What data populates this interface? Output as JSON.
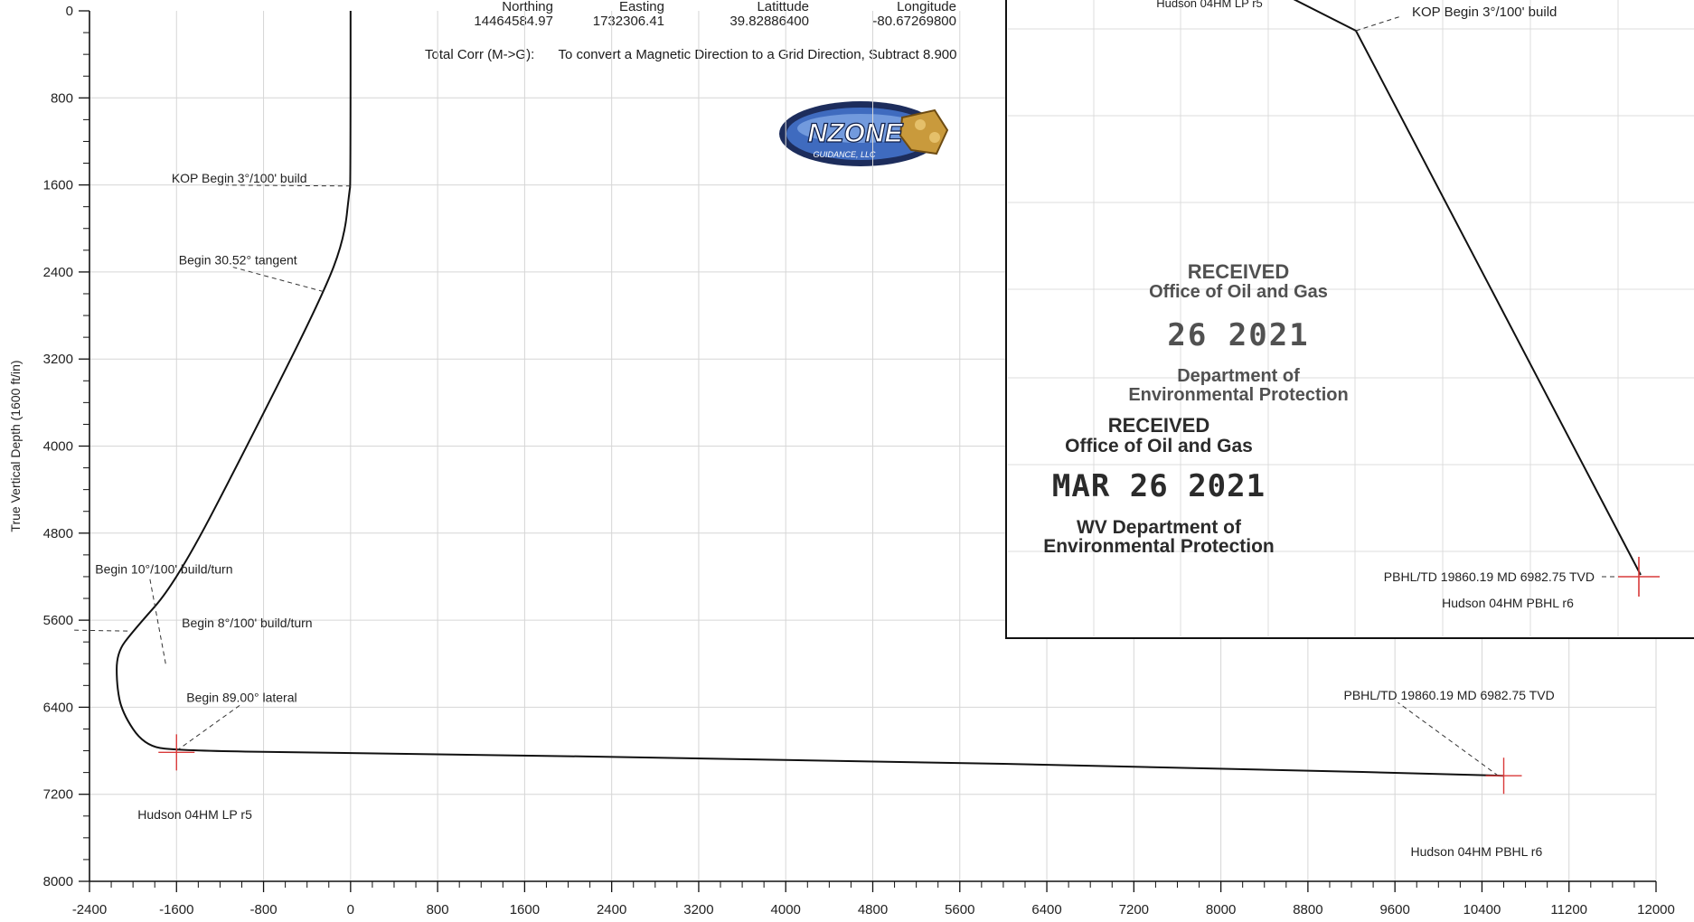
{
  "header": {
    "columns": [
      {
        "label": "Northing",
        "value": "14464584.97"
      },
      {
        "label": "Easting",
        "value": "1732306.41"
      },
      {
        "label": "Latittude",
        "value": "39.82886400"
      },
      {
        "label": "Longitude",
        "value": "-80.67269800"
      }
    ],
    "total_corr_label": "Total Corr (M->G):",
    "total_corr_text": "To convert a Magnetic Direction to a Grid Direction, Subtract 8.900"
  },
  "logo": {
    "text": "NZONE",
    "subtext": "GUIDANCE, LLC"
  },
  "chart_data": {
    "type": "line",
    "ylabel": "True Vertical Depth (1600 ft/in)",
    "x_ticks": [
      -2400,
      -1600,
      -800,
      0,
      800,
      1600,
      2400,
      3200,
      4000,
      4800,
      5600,
      6400,
      7200,
      8000,
      8800,
      9600,
      10400,
      11200,
      12000
    ],
    "y_ticks": [
      0,
      800,
      1600,
      2400,
      3200,
      4000,
      4800,
      5600,
      6400,
      7200,
      8000
    ],
    "xlim": [
      -2400,
      12000
    ],
    "ylim": [
      0,
      8000
    ],
    "y_inverted": true,
    "grid": true,
    "series": [
      {
        "x": [
          0,
          0,
          -10,
          -60,
          -250,
          -900,
          -1600,
          -2000,
          -2150,
          -2150,
          -2100,
          -1900,
          -1600,
          0,
          4000,
          8000,
          10600
        ],
        "y": [
          0,
          1600,
          1650,
          2100,
          2600,
          3900,
          5250,
          5700,
          5900,
          6200,
          6450,
          6750,
          6800,
          6820,
          6880,
          6960,
          7030
        ]
      }
    ],
    "annotations": [
      {
        "text": "KOP Begin 3°/100' build",
        "x": 0,
        "y": 1610
      },
      {
        "text": "Begin 30.52° tangent",
        "x": -250,
        "y": 2580
      },
      {
        "text": "Begin 8°/100' build/turn",
        "x": -2050,
        "y": 5700
      },
      {
        "text": "Begin 10°/100' build/turn",
        "x": -1700,
        "y": 6000
      },
      {
        "text": "Begin 89.00° lateral",
        "x": -1600,
        "y": 6800
      },
      {
        "text": "Hudson 04HM LP r5",
        "x": -1600,
        "y": 6830
      },
      {
        "text": "PBHL/TD 19860.19 MD 6982.75 TVD",
        "x": 10550,
        "y": 7030
      },
      {
        "text": "Hudson 04HM PBHL r6",
        "x": 10550,
        "y": 7030
      }
    ]
  },
  "inset": {
    "labels": {
      "top_label": "Hudson 04HM LP r5",
      "kop": "KOP Begin 3°/100' build",
      "pbhl": "PBHL/TD 19860.19 MD 6982.75 TVD",
      "pbhl_name": "Hudson 04HM PBHL r6"
    }
  },
  "stamps": {
    "stamp1": {
      "received": "RECEIVED",
      "office": "Office of Oil and Gas",
      "date": "26 2021",
      "dept": "Department of",
      "protection": "Environmental Protection"
    },
    "stamp2": {
      "received": "RECEIVED",
      "office": "Office of Oil and Gas",
      "date": "MAR 26 2021",
      "dept": "WV Department of",
      "protection": "Environmental Protection"
    }
  },
  "colors": {
    "curve": "#111111",
    "grid": "#d6d6d6",
    "target_cross": "#d93a3a"
  }
}
